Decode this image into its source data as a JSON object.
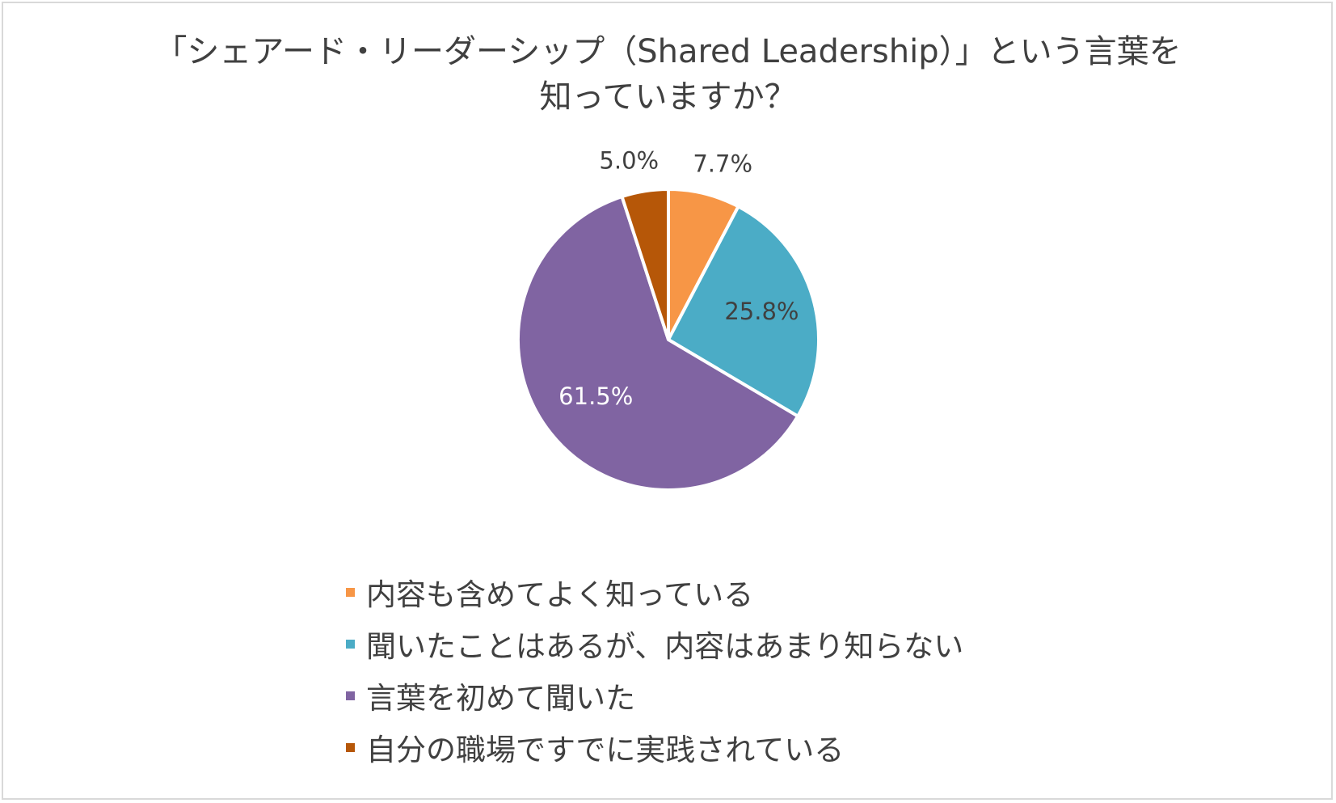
{
  "chart_data": {
    "type": "pie",
    "title_lines": [
      "「シェアード・リーダーシップ（Shared Leadership）」という言葉を",
      "知っていますか？"
    ],
    "categories": [
      "内容も含めてよく知っている",
      "聞いたことはあるが、内容はあまり知らない",
      "言葉を初めて聞いた",
      "自分の職場ですでに実践されている"
    ],
    "values": [
      7.7,
      25.8,
      61.5,
      5.0
    ],
    "data_labels": [
      "7.7%",
      "25.8%",
      "61.5%",
      "5.0%"
    ],
    "colors": [
      "#F79646",
      "#4BACC6",
      "#8064A2",
      "#B65708"
    ],
    "legend_position": "bottom"
  }
}
